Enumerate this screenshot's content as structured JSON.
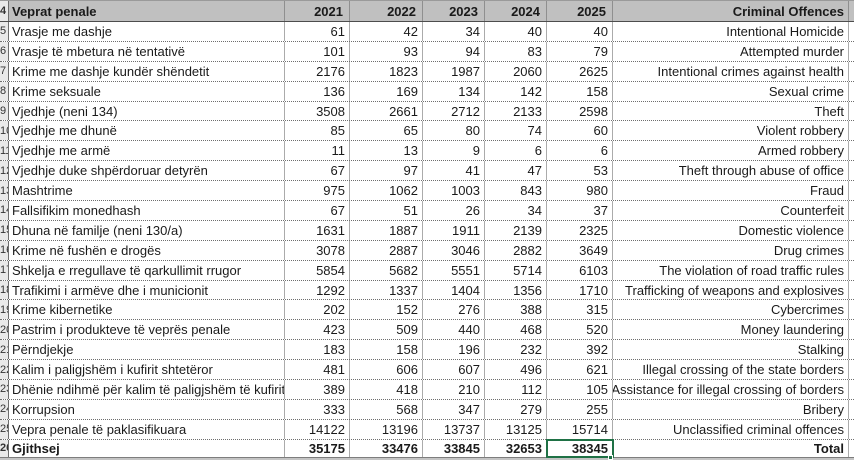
{
  "colors": {
    "header_fill": "#c0c0c0",
    "active_cell_border": "#1f7145",
    "gridline": "#ababab",
    "dotted_line": "#6e6e6e"
  },
  "sheet": {
    "header": {
      "row_number": "4",
      "albanian_label": "Veprat penale",
      "years": [
        "2021",
        "2022",
        "2023",
        "2024",
        "2025"
      ],
      "english_label": "Criminal Offences"
    },
    "rows": [
      {
        "n": "5",
        "sq": "Vrasje me dashje",
        "values": [
          61,
          42,
          34,
          40,
          40
        ],
        "en": "Intentional Homicide"
      },
      {
        "n": "6",
        "sq": "Vrasje të mbetura në tentativë",
        "values": [
          101,
          93,
          94,
          83,
          79
        ],
        "en": "Attempted murder"
      },
      {
        "n": "7",
        "sq": "Krime me dashje kundër shëndetit",
        "values": [
          2176,
          1823,
          1987,
          2060,
          2625
        ],
        "en": "Intentional crimes against health"
      },
      {
        "n": "8",
        "sq": "Krime seksuale",
        "values": [
          136,
          169,
          134,
          142,
          158
        ],
        "en": "Sexual crime"
      },
      {
        "n": "9",
        "sq": "Vjedhje (neni 134)",
        "values": [
          3508,
          2661,
          2712,
          2133,
          2598
        ],
        "en": "Theft"
      },
      {
        "n": "10",
        "sq": "Vjedhje me dhunë",
        "values": [
          85,
          65,
          80,
          74,
          60
        ],
        "en": "Violent robbery"
      },
      {
        "n": "11",
        "sq": "Vjedhje me armë",
        "values": [
          11,
          13,
          9,
          6,
          6
        ],
        "en": "Armed robbery"
      },
      {
        "n": "12",
        "sq": "Vjedhje duke shpërdoruar detyrën",
        "values": [
          67,
          97,
          41,
          47,
          53
        ],
        "en": "Theft through abuse of office"
      },
      {
        "n": "13",
        "sq": "Mashtrime",
        "values": [
          975,
          1062,
          1003,
          843,
          980
        ],
        "en": "Fraud"
      },
      {
        "n": "14",
        "sq": "Fallsifikim monedhash",
        "values": [
          67,
          51,
          26,
          34,
          37
        ],
        "en": "Counterfeit"
      },
      {
        "n": "15",
        "sq": "Dhuna në familje (neni 130/a)",
        "values": [
          1631,
          1887,
          1911,
          2139,
          2325
        ],
        "en": "Domestic violence"
      },
      {
        "n": "16",
        "sq": "Krime në fushën e drogës",
        "values": [
          3078,
          2887,
          3046,
          2882,
          3649
        ],
        "en": "Drug crimes"
      },
      {
        "n": "17",
        "sq": "Shkelja e rregullave të qarkullimit rrugor",
        "values": [
          5854,
          5682,
          5551,
          5714,
          6103
        ],
        "en": "The violation of road traffic rules"
      },
      {
        "n": "18",
        "sq": "Trafikimi i armëve dhe i municionit",
        "values": [
          1292,
          1337,
          1404,
          1356,
          1710
        ],
        "en": "Trafficking of weapons and explosives"
      },
      {
        "n": "19",
        "sq": "Krime kibernetike",
        "values": [
          202,
          152,
          276,
          388,
          315
        ],
        "en": "Cybercrimes"
      },
      {
        "n": "20",
        "sq": "Pastrim i produkteve të veprës penale",
        "values": [
          423,
          509,
          440,
          468,
          520
        ],
        "en": "Money laundering"
      },
      {
        "n": "21",
        "sq": "Përndjekje",
        "values": [
          183,
          158,
          196,
          232,
          392
        ],
        "en": "Stalking"
      },
      {
        "n": "22",
        "sq": "Kalim i paligjshëm i kufirit shtetëror",
        "values": [
          481,
          606,
          607,
          496,
          621
        ],
        "en": "Illegal crossing of the state borders"
      },
      {
        "n": "23",
        "sq": "Dhënie ndihmë për kalim të paligjshëm të kufirit",
        "values": [
          389,
          418,
          210,
          112,
          105
        ],
        "en": "Assistance for illegal crossing of borders"
      },
      {
        "n": "24",
        "sq": "Korrupsion",
        "values": [
          333,
          568,
          347,
          279,
          255
        ],
        "en": "Bribery"
      },
      {
        "n": "25",
        "sq": "Vepra penale të paklasifikuara",
        "values": [
          14122,
          13196,
          13737,
          13125,
          15714
        ],
        "en": "Unclassified criminal offences"
      }
    ],
    "total_row": {
      "n": "26",
      "sq": "Gjithsej",
      "values": [
        35175,
        33476,
        33845,
        32653,
        38345
      ],
      "en": "Total"
    },
    "active_cell": {
      "row_label": "Gjithsej",
      "year": "2025",
      "value": "38345"
    }
  }
}
